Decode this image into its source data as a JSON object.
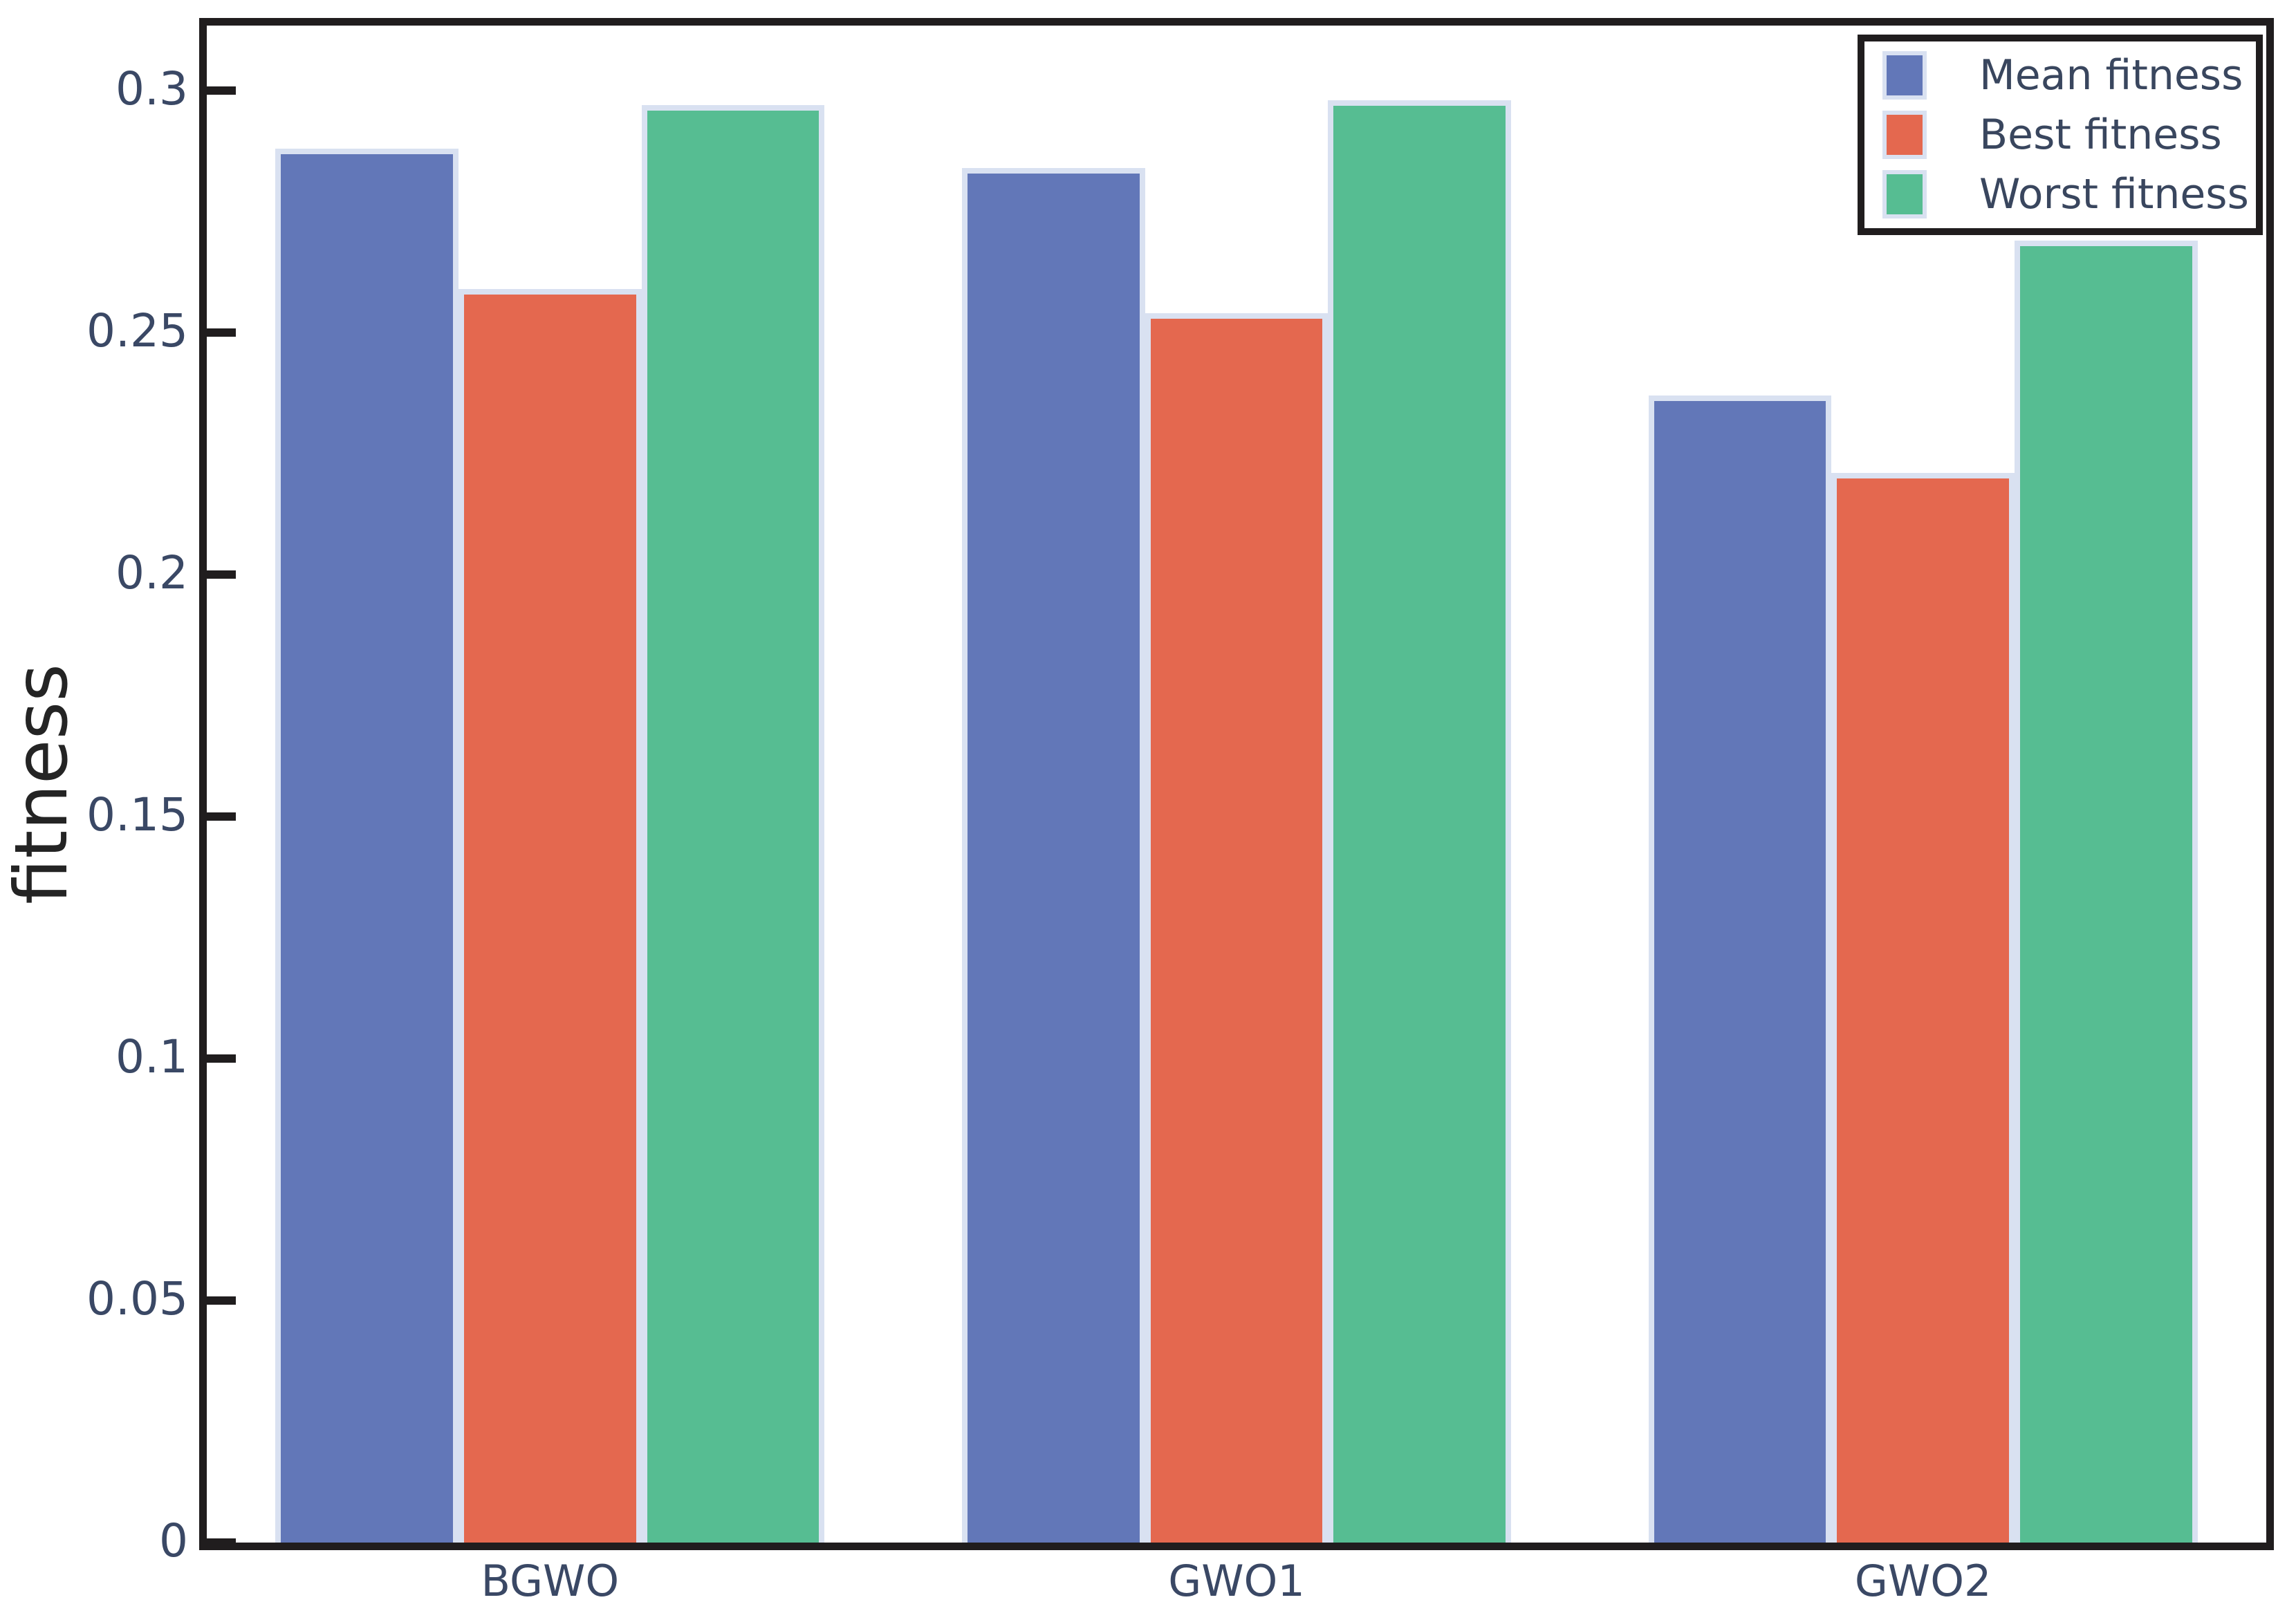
{
  "figure": {
    "background": "#ffffff"
  },
  "chart_data": {
    "type": "bar",
    "title": "",
    "xlabel": "",
    "ylabel": "fitness",
    "categories": [
      "BGWO",
      "GWO1",
      "GWO2"
    ],
    "series": [
      {
        "name": "Mean fitness",
        "color": "#6277B8",
        "values": [
          0.288,
          0.284,
          0.237
        ]
      },
      {
        "name": "Best fitness",
        "color": "#E4684F",
        "values": [
          0.259,
          0.254,
          0.221
        ]
      },
      {
        "name": "Worst fitness",
        "color": "#56BD92",
        "values": [
          0.297,
          0.298,
          0.269
        ]
      }
    ],
    "ylim": [
      0,
      0.3135
    ],
    "yticks": [
      0,
      0.05,
      0.1,
      0.15,
      0.2,
      0.25,
      0.3
    ],
    "ytick_labels": [
      "0",
      "0.05",
      "0.1",
      "0.15",
      "0.2",
      "0.25",
      "0.3"
    ],
    "grid": false,
    "legend_position": "upper right",
    "bar_edge_color": "#D9E1F1",
    "axis_color": "#201d1e",
    "tick_label_color": "#3A4865",
    "legend_text_color": "#39465E"
  }
}
